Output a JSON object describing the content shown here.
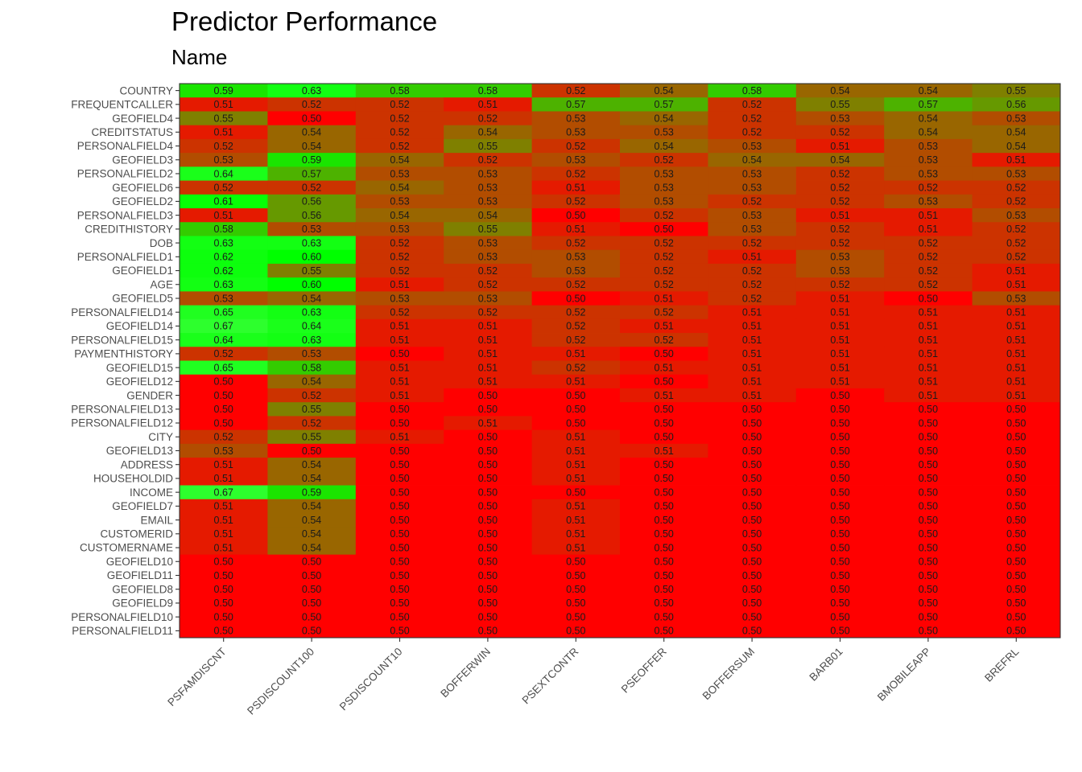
{
  "chart_data": {
    "type": "heatmap",
    "title": "Predictor Performance",
    "subtitle": "Name",
    "columns": [
      "PSFAMDISCNT",
      "PSDISCOUNT100",
      "PSDISCOUNT10",
      "BOFFERWIN",
      "PSEXTCONTR",
      "PSEOFFER",
      "BOFFERSUM",
      "BARB01",
      "BMOBILEAPP",
      "BREFRL"
    ],
    "rows": [
      "COUNTRY",
      "FREQUENTCALLER",
      "GEOFIELD4",
      "CREDITSTATUS",
      "PERSONALFIELD4",
      "GEOFIELD3",
      "PERSONALFIELD2",
      "GEOFIELD6",
      "GEOFIELD2",
      "PERSONALFIELD3",
      "CREDITHISTORY",
      "DOB",
      "PERSONALFIELD1",
      "GEOFIELD1",
      "AGE",
      "GEOFIELD5",
      "PERSONALFIELD14",
      "GEOFIELD14",
      "PERSONALFIELD15",
      "PAYMENTHISTORY",
      "GEOFIELD15",
      "GEOFIELD12",
      "GENDER",
      "PERSONALFIELD13",
      "PERSONALFIELD12",
      "CITY",
      "GEOFIELD13",
      "ADDRESS",
      "HOUSEHOLDID",
      "INCOME",
      "GEOFIELD7",
      "EMAIL",
      "CUSTOMERID",
      "CUSTOMERNAME",
      "GEOFIELD10",
      "GEOFIELD11",
      "GEOFIELD8",
      "GEOFIELD9",
      "PERSONALFIELD10",
      "PERSONALFIELD11"
    ],
    "values": [
      [
        0.59,
        0.63,
        0.58,
        0.58,
        0.52,
        0.54,
        0.58,
        0.54,
        0.54,
        0.55
      ],
      [
        0.51,
        0.52,
        0.52,
        0.51,
        0.57,
        0.57,
        0.52,
        0.55,
        0.57,
        0.56
      ],
      [
        0.55,
        0.5,
        0.52,
        0.52,
        0.53,
        0.54,
        0.52,
        0.53,
        0.54,
        0.53
      ],
      [
        0.51,
        0.54,
        0.52,
        0.54,
        0.53,
        0.53,
        0.52,
        0.52,
        0.54,
        0.54
      ],
      [
        0.52,
        0.54,
        0.52,
        0.55,
        0.52,
        0.54,
        0.53,
        0.51,
        0.53,
        0.54
      ],
      [
        0.53,
        0.59,
        0.54,
        0.52,
        0.53,
        0.52,
        0.54,
        0.54,
        0.53,
        0.51
      ],
      [
        0.64,
        0.57,
        0.53,
        0.53,
        0.52,
        0.53,
        0.53,
        0.52,
        0.53,
        0.53
      ],
      [
        0.52,
        0.52,
        0.54,
        0.53,
        0.51,
        0.53,
        0.53,
        0.52,
        0.52,
        0.52
      ],
      [
        0.61,
        0.56,
        0.53,
        0.53,
        0.52,
        0.53,
        0.52,
        0.52,
        0.53,
        0.52
      ],
      [
        0.51,
        0.56,
        0.54,
        0.54,
        0.5,
        0.52,
        0.53,
        0.51,
        0.51,
        0.53
      ],
      [
        0.58,
        0.53,
        0.53,
        0.55,
        0.51,
        0.5,
        0.53,
        0.52,
        0.51,
        0.52
      ],
      [
        0.63,
        0.63,
        0.52,
        0.53,
        0.52,
        0.52,
        0.52,
        0.52,
        0.52,
        0.52
      ],
      [
        0.62,
        0.6,
        0.52,
        0.53,
        0.53,
        0.52,
        0.51,
        0.53,
        0.52,
        0.52
      ],
      [
        0.62,
        0.55,
        0.52,
        0.52,
        0.53,
        0.52,
        0.52,
        0.53,
        0.52,
        0.51
      ],
      [
        0.63,
        0.6,
        0.51,
        0.52,
        0.52,
        0.52,
        0.52,
        0.52,
        0.52,
        0.51
      ],
      [
        0.53,
        0.54,
        0.53,
        0.53,
        0.5,
        0.51,
        0.52,
        0.51,
        0.5,
        0.53
      ],
      [
        0.65,
        0.63,
        0.52,
        0.52,
        0.52,
        0.52,
        0.51,
        0.51,
        0.51,
        0.51
      ],
      [
        0.67,
        0.64,
        0.51,
        0.51,
        0.52,
        0.51,
        0.51,
        0.51,
        0.51,
        0.51
      ],
      [
        0.64,
        0.63,
        0.51,
        0.51,
        0.52,
        0.52,
        0.51,
        0.51,
        0.51,
        0.51
      ],
      [
        0.52,
        0.53,
        0.5,
        0.51,
        0.51,
        0.5,
        0.51,
        0.51,
        0.51,
        0.51
      ],
      [
        0.65,
        0.58,
        0.51,
        0.51,
        0.52,
        0.51,
        0.51,
        0.51,
        0.51,
        0.51
      ],
      [
        0.5,
        0.54,
        0.51,
        0.51,
        0.51,
        0.5,
        0.51,
        0.51,
        0.51,
        0.51
      ],
      [
        0.5,
        0.52,
        0.51,
        0.5,
        0.5,
        0.51,
        0.51,
        0.5,
        0.51,
        0.51
      ],
      [
        0.5,
        0.55,
        0.5,
        0.5,
        0.5,
        0.5,
        0.5,
        0.5,
        0.5,
        0.5
      ],
      [
        0.5,
        0.52,
        0.5,
        0.51,
        0.5,
        0.5,
        0.5,
        0.5,
        0.5,
        0.5
      ],
      [
        0.52,
        0.55,
        0.51,
        0.5,
        0.51,
        0.5,
        0.5,
        0.5,
        0.5,
        0.5
      ],
      [
        0.53,
        0.5,
        0.5,
        0.5,
        0.51,
        0.51,
        0.5,
        0.5,
        0.5,
        0.5
      ],
      [
        0.51,
        0.54,
        0.5,
        0.5,
        0.51,
        0.5,
        0.5,
        0.5,
        0.5,
        0.5
      ],
      [
        0.51,
        0.54,
        0.5,
        0.5,
        0.51,
        0.5,
        0.5,
        0.5,
        0.5,
        0.5
      ],
      [
        0.67,
        0.59,
        0.5,
        0.5,
        0.5,
        0.5,
        0.5,
        0.5,
        0.5,
        0.5
      ],
      [
        0.51,
        0.54,
        0.5,
        0.5,
        0.51,
        0.5,
        0.5,
        0.5,
        0.5,
        0.5
      ],
      [
        0.51,
        0.54,
        0.5,
        0.5,
        0.51,
        0.5,
        0.5,
        0.5,
        0.5,
        0.5
      ],
      [
        0.51,
        0.54,
        0.5,
        0.5,
        0.51,
        0.5,
        0.5,
        0.5,
        0.5,
        0.5
      ],
      [
        0.51,
        0.54,
        0.5,
        0.5,
        0.51,
        0.5,
        0.5,
        0.5,
        0.5,
        0.5
      ],
      [
        0.5,
        0.5,
        0.5,
        0.5,
        0.5,
        0.5,
        0.5,
        0.5,
        0.5,
        0.5
      ],
      [
        0.5,
        0.5,
        0.5,
        0.5,
        0.5,
        0.5,
        0.5,
        0.5,
        0.5,
        0.5
      ],
      [
        0.5,
        0.5,
        0.5,
        0.5,
        0.5,
        0.5,
        0.5,
        0.5,
        0.5,
        0.5
      ],
      [
        0.5,
        0.5,
        0.5,
        0.5,
        0.5,
        0.5,
        0.5,
        0.5,
        0.5,
        0.5
      ],
      [
        0.5,
        0.5,
        0.5,
        0.5,
        0.5,
        0.5,
        0.5,
        0.5,
        0.5,
        0.5
      ],
      [
        0.5,
        0.5,
        0.5,
        0.5,
        0.5,
        0.5,
        0.5,
        0.5,
        0.5,
        0.5
      ]
    ],
    "color_scale": {
      "low": "#ff0000",
      "mid": "#00ff00",
      "high": "#ffffff"
    },
    "grid": true,
    "legend": "none"
  }
}
